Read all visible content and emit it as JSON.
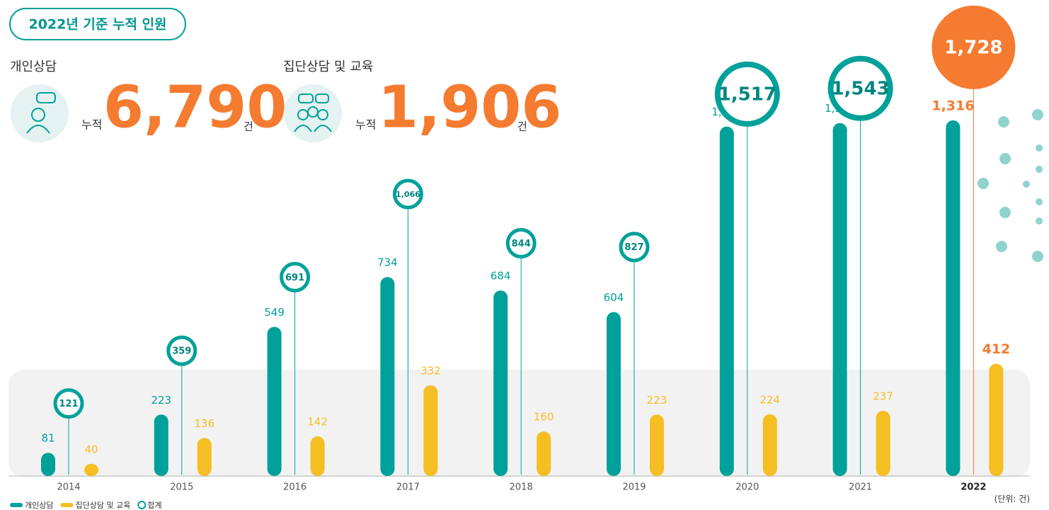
{
  "summary": {
    "badge": "2022년 기준 누적 인원",
    "items": [
      {
        "label": "개인상담",
        "prefix": "누적",
        "value": "6,790",
        "unit": "건"
      },
      {
        "label": "집단상담 및 교육",
        "prefix": "누적",
        "value": "1,906",
        "unit": "건"
      }
    ]
  },
  "chart_data": {
    "type": "bar",
    "unit_note": "(단위: 건)",
    "categories": [
      "2014",
      "2015",
      "2016",
      "2017",
      "2018",
      "2019",
      "2020",
      "2021",
      "2022"
    ],
    "ylim": [
      0,
      1400
    ],
    "y2lim": [
      -200,
      1750
    ],
    "series": [
      {
        "name": "개인상담",
        "color": "#00a19a",
        "values": [
          81,
          223,
          549,
          734,
          684,
          604,
          1293,
          1306,
          1316
        ],
        "value_labels": [
          "81",
          "223",
          "549",
          "734",
          "684",
          "604",
          "1,293",
          "1,306",
          "1,316"
        ]
      },
      {
        "name": "집단상담 및 교육",
        "color": "#f5be22",
        "values": [
          40,
          136,
          142,
          332,
          160,
          223,
          224,
          237,
          412
        ]
      },
      {
        "name": "합계",
        "color": "#00a19a",
        "axis": "y2",
        "values": [
          121,
          359,
          691,
          1066,
          844,
          827,
          1517,
          1543,
          1728
        ],
        "value_labels": [
          "121",
          "359",
          "691",
          "1,066",
          "844",
          "827",
          "1,517",
          "1,543",
          "1,728"
        ]
      }
    ],
    "highlight_color": "#f47b30"
  }
}
